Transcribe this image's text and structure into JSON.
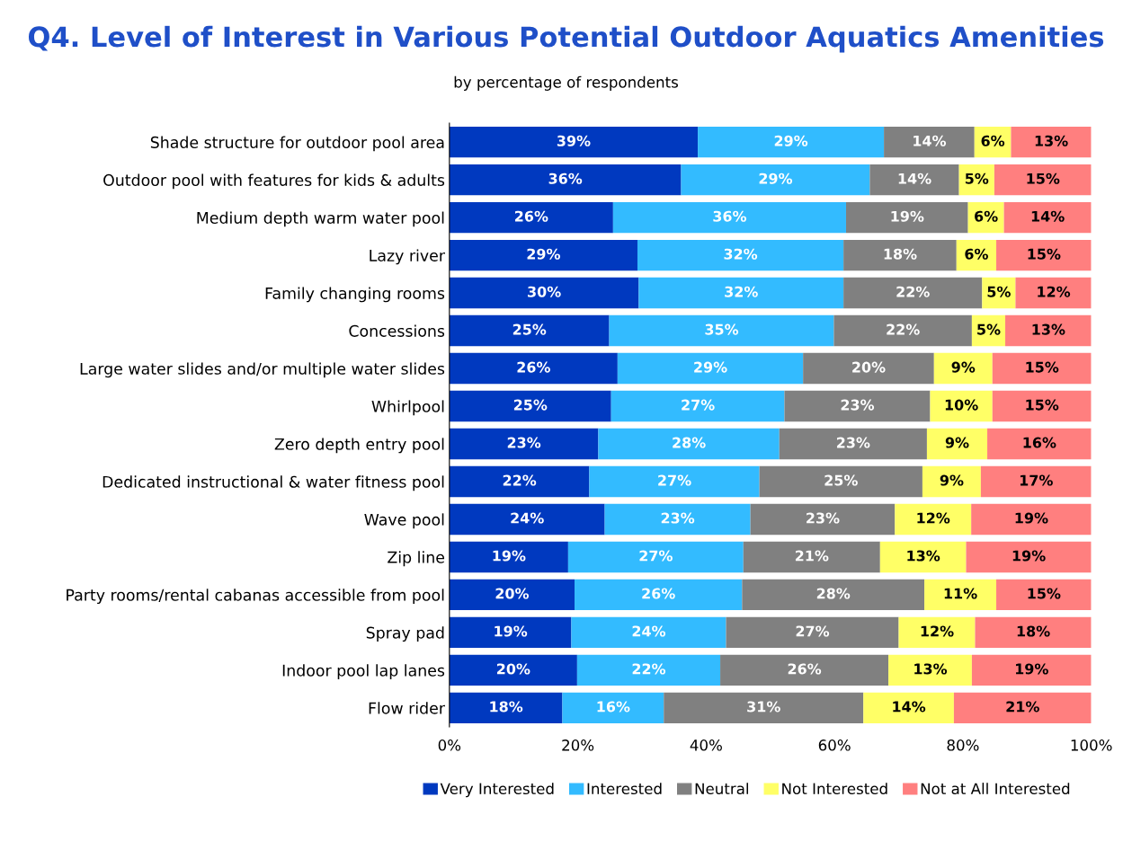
{
  "chart_data": {
    "type": "bar",
    "orientation": "horizontal",
    "stacked": true,
    "title": "Q4. Level of Interest in Various Potential Outdoor Aquatics Amenities",
    "subtitle": "by percentage of respondents",
    "categories": [
      "Shade structure for outdoor pool area",
      "Outdoor pool with features for kids & adults",
      "Medium depth warm water pool",
      "Lazy river",
      "Family changing rooms",
      "Concessions",
      "Large water slides and/or multiple water slides",
      "Whirlpool",
      "Zero depth entry pool",
      "Dedicated instructional & water fitness pool",
      "Wave pool",
      "Zip line",
      "Party rooms/rental cabanas accessible from pool",
      "Spray pad",
      "Indoor pool lap lanes",
      "Flow rider"
    ],
    "series": [
      {
        "name": "Very Interested",
        "color": "#0039bf",
        "values": [
          38.7,
          36.1,
          25.5,
          29.3,
          29.5,
          24.9,
          26.2,
          25.2,
          23.2,
          21.8,
          24.2,
          18.5,
          19.5,
          19.0,
          19.9,
          17.6
        ],
        "value_labels": [
          "39%",
          "36%",
          "26%",
          "29%",
          "30%",
          "25%",
          "26%",
          "25%",
          "23%",
          "22%",
          "24%",
          "19%",
          "20%",
          "19%",
          "20%",
          "18%"
        ]
      },
      {
        "name": "Interested",
        "color": "#33bbff",
        "values": [
          29.0,
          29.4,
          36.3,
          32.1,
          31.9,
          35.0,
          28.9,
          27.0,
          28.2,
          26.5,
          22.7,
          27.3,
          26.1,
          24.1,
          22.3,
          15.8
        ],
        "value_labels": [
          "29%",
          "29%",
          "36%",
          "32%",
          "32%",
          "35%",
          "29%",
          "27%",
          "28%",
          "27%",
          "23%",
          "27%",
          "26%",
          "24%",
          "22%",
          "16%"
        ]
      },
      {
        "name": "Neutral",
        "color": "#808080",
        "values": [
          14.1,
          13.9,
          19.0,
          17.6,
          21.6,
          21.5,
          20.4,
          22.7,
          23.0,
          25.4,
          22.5,
          21.3,
          28.4,
          26.9,
          26.2,
          31.1
        ],
        "value_labels": [
          "14%",
          "14%",
          "19%",
          "18%",
          "22%",
          "22%",
          "20%",
          "23%",
          "23%",
          "25%",
          "23%",
          "21%",
          "28%",
          "27%",
          "26%",
          "31%"
        ]
      },
      {
        "name": "Not Interested",
        "color": "#ffff66",
        "values": [
          5.7,
          5.5,
          5.6,
          6.2,
          5.2,
          5.2,
          9.1,
          9.7,
          9.4,
          9.1,
          11.9,
          13.4,
          11.2,
          11.9,
          13.0,
          14.1
        ],
        "value_labels": [
          "6%",
          "5%",
          "6%",
          "6%",
          "5%",
          "5%",
          "9%",
          "10%",
          "9%",
          "9%",
          "12%",
          "13%",
          "11%",
          "12%",
          "13%",
          "14%"
        ]
      },
      {
        "name": "Not at All Interested",
        "color": "#ff7f7f",
        "values": [
          12.5,
          15.1,
          13.6,
          14.8,
          11.8,
          13.4,
          15.4,
          15.4,
          16.2,
          17.2,
          18.7,
          19.5,
          14.8,
          18.1,
          18.6,
          21.4
        ],
        "value_labels": [
          "13%",
          "15%",
          "14%",
          "15%",
          "12%",
          "13%",
          "15%",
          "15%",
          "16%",
          "17%",
          "19%",
          "19%",
          "15%",
          "18%",
          "19%",
          "21%"
        ]
      }
    ],
    "xlim": [
      0,
      100
    ],
    "xticks": [
      {
        "value": 0,
        "label": "0%"
      },
      {
        "value": 20,
        "label": "20%"
      },
      {
        "value": 40,
        "label": "40%"
      },
      {
        "value": 60,
        "label": "60%"
      },
      {
        "value": 80,
        "label": "80%"
      },
      {
        "value": 100,
        "label": "100%"
      }
    ],
    "legend": "bottom",
    "grid": false
  }
}
